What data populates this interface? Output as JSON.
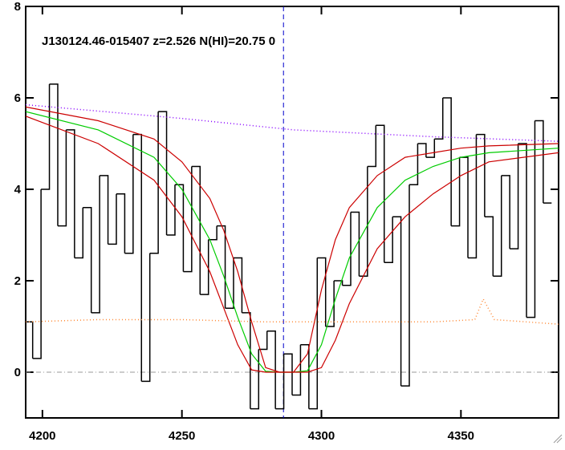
{
  "chart_data": {
    "type": "line",
    "title": "J130124.46-015407 z=2.526 N(HI)=20.75 0",
    "xlim": [
      4194,
      4385
    ],
    "ylim": [
      -1,
      8
    ],
    "xticks": [
      4200,
      4250,
      4300,
      4350
    ],
    "yticks": [
      0,
      2,
      4,
      6,
      8
    ],
    "vlines": [
      {
        "value": 4286.4,
        "color": "#0000cc"
      }
    ],
    "hlines": [
      {
        "value": 0,
        "color": "#999999"
      }
    ],
    "series": [
      {
        "style": "steps",
        "color": "#000000",
        "x": [
          4195,
          4198,
          4201,
          4204,
          4207,
          4210,
          4213,
          4216,
          4219,
          4222,
          4225,
          4228,
          4231,
          4234,
          4237,
          4240,
          4243,
          4246,
          4249,
          4252,
          4255,
          4258,
          4261,
          4264,
          4267,
          4270,
          4273,
          4276,
          4279,
          4282,
          4285,
          4288,
          4291,
          4294,
          4297,
          4300,
          4303,
          4306,
          4309,
          4312,
          4315,
          4318,
          4321,
          4324,
          4327,
          4330,
          4333,
          4336,
          4339,
          4342,
          4345,
          4348,
          4351,
          4354,
          4357,
          4360,
          4363,
          4366,
          4369,
          4372,
          4375,
          4378,
          4381
        ],
        "values": [
          1.1,
          0.3,
          4.0,
          6.3,
          3.2,
          5.3,
          2.5,
          3.6,
          1.3,
          4.3,
          2.8,
          3.9,
          2.6,
          5.2,
          -0.2,
          2.6,
          5.7,
          3.0,
          4.1,
          2.2,
          4.5,
          1.7,
          2.9,
          3.2,
          1.4,
          2.5,
          1.3,
          -0.8,
          0.5,
          0.9,
          -0.8,
          0.4,
          -0.5,
          0.6,
          -0.8,
          2.5,
          1.0,
          2.0,
          1.9,
          3.5,
          2.1,
          4.5,
          5.4,
          2.4,
          3.4,
          -0.3,
          4.1,
          5.0,
          4.7,
          5.1,
          6.0,
          3.2,
          4.7,
          2.5,
          5.2,
          3.4,
          2.1,
          4.3,
          2.7,
          5.0,
          1.2,
          5.5,
          3.7
        ]
      },
      {
        "style": "solid",
        "color": "#00cc00",
        "x": [
          4194,
          4220,
          4240,
          4250,
          4260,
          4265,
          4270,
          4275,
          4280,
          4285,
          4290,
          4295,
          4300,
          4305,
          4310,
          4320,
          4330,
          4340,
          4350,
          4360,
          4385
        ],
        "values": [
          5.7,
          5.3,
          4.7,
          4.0,
          2.9,
          2.1,
          1.2,
          0.4,
          0.02,
          0,
          0,
          0.03,
          0.6,
          1.6,
          2.5,
          3.6,
          4.2,
          4.5,
          4.7,
          4.8,
          4.9
        ]
      },
      {
        "style": "solid",
        "color": "#cc0000",
        "x": [
          4194,
          4220,
          4240,
          4250,
          4260,
          4265,
          4270,
          4275,
          4280,
          4285,
          4290,
          4295,
          4300,
          4305,
          4310,
          4320,
          4330,
          4340,
          4350,
          4360,
          4385
        ],
        "values": [
          5.8,
          5.5,
          5.1,
          4.6,
          3.8,
          3.1,
          2.2,
          1.1,
          0.1,
          0,
          0,
          0.4,
          1.8,
          2.9,
          3.6,
          4.3,
          4.7,
          4.8,
          4.9,
          4.95,
          5.0
        ]
      },
      {
        "style": "solid",
        "color": "#cc0000",
        "x": [
          4194,
          4220,
          4240,
          4250,
          4260,
          4265,
          4270,
          4275,
          4280,
          4285,
          4290,
          4295,
          4300,
          4305,
          4310,
          4320,
          4330,
          4340,
          4350,
          4360,
          4385
        ],
        "values": [
          5.6,
          5.0,
          4.2,
          3.4,
          2.2,
          1.4,
          0.6,
          0.05,
          0,
          0,
          0,
          0,
          0.1,
          0.7,
          1.5,
          2.7,
          3.4,
          3.9,
          4.3,
          4.6,
          4.8
        ]
      },
      {
        "style": "dotted",
        "color": "#8800ff",
        "x": [
          4194,
          4250,
          4290,
          4340,
          4385
        ],
        "values": [
          5.85,
          5.55,
          5.3,
          5.15,
          5.05
        ]
      },
      {
        "style": "dotted",
        "color": "#ff8833",
        "x": [
          4194,
          4220,
          4250,
          4280,
          4300,
          4340,
          4355,
          4358,
          4362,
          4385
        ],
        "values": [
          1.1,
          1.15,
          1.15,
          1.1,
          1.1,
          1.1,
          1.15,
          1.6,
          1.15,
          1.05
        ]
      }
    ]
  }
}
